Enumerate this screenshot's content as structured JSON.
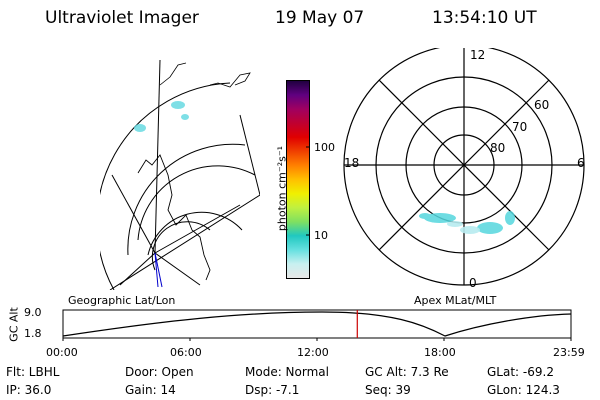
{
  "header": {
    "instrument": "Ultraviolet Imager",
    "date": "19 May 07",
    "time": "13:54:10 UT"
  },
  "colorbar": {
    "unit_label": "photon cm⁻²s⁻¹",
    "tick_100": "100",
    "tick_10": "10",
    "colors": [
      "#e8e8e8",
      "#c8f0f0",
      "#66e0e0",
      "#20c8c0",
      "#80e060",
      "#c0f040",
      "#f0f000",
      "#ffc000",
      "#ff8000",
      "#f04000",
      "#e00000",
      "#c00030",
      "#a00060",
      "#600080",
      "#200040"
    ]
  },
  "polar_plot": {
    "label_12": "12",
    "label_18": "18",
    "label_6": "6",
    "label_0": "0",
    "label_60": "60",
    "label_70": "70",
    "label_80": "80",
    "title": "Apex MLat/MLT"
  },
  "geo_plot": {
    "title": "Geographic Lat/Lon"
  },
  "altitude_plot": {
    "ylabel": "GC Alt",
    "ymax": "9.0",
    "ymin": "1.8",
    "x_ticks": [
      "00:00",
      "06:00",
      "12:00",
      "18:00",
      "23:59"
    ],
    "marker_color": "#cc0000",
    "marker_fraction": 0.5793
  },
  "info": {
    "flt": "Flt: LBHL",
    "ip": "IP: 36.0",
    "door": "Door: Open",
    "gain": "Gain: 14",
    "mode": "Mode: Normal",
    "dsp": "Dsp:    -7.1",
    "gc_alt": "GC Alt: 7.3 Re",
    "seq": "Seq: 39",
    "glat": "GLat:  -69.2",
    "glon": "GLon: 124.3"
  }
}
